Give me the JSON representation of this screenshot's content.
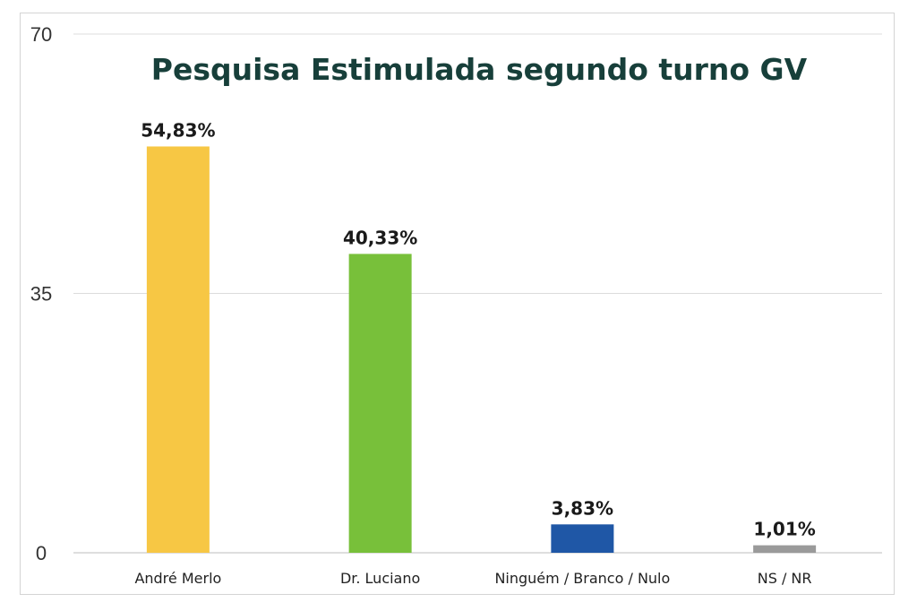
{
  "chart_data": {
    "type": "bar",
    "title": "Pesquisa Estimulada segundo turno GV",
    "xlabel": "",
    "ylabel": "",
    "ylim": [
      0,
      70
    ],
    "yticks": [
      "0",
      "35",
      "70"
    ],
    "grid": true,
    "legend": "none",
    "categories": [
      "André Merlo",
      "Dr. Luciano",
      "Ninguém / Branco / Nulo",
      "NS / NR"
    ],
    "values": [
      54.83,
      40.33,
      3.83,
      1.01
    ],
    "data_labels": [
      "54,83%",
      "40,33%",
      "3,83%",
      "1,01%"
    ],
    "colors": [
      "#f7c744",
      "#78c03a",
      "#1f57a6",
      "#9a9a9a"
    ]
  }
}
